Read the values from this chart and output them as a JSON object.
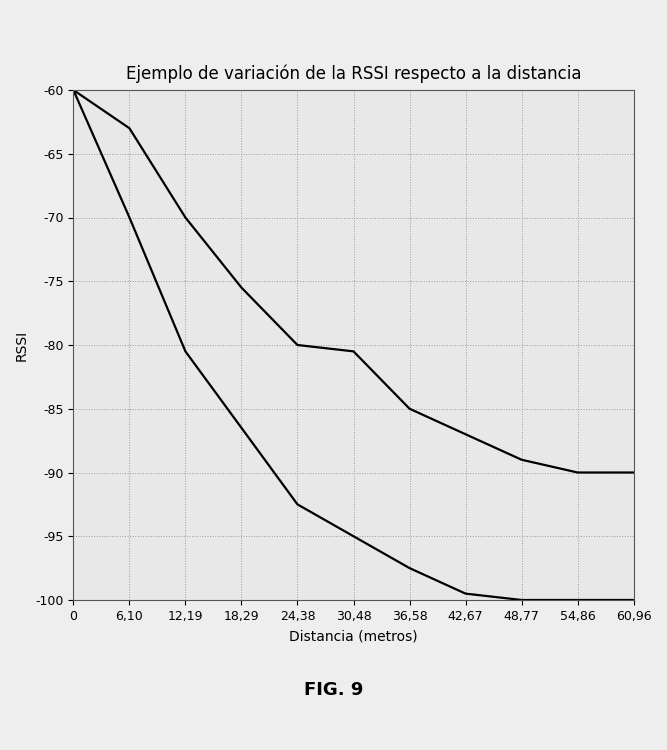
{
  "title": "Ejemplo de variación de la RSSI respecto a la distancia",
  "xlabel": "Distancia (metros)",
  "ylabel": "RSSI",
  "caption": "FIG. 9",
  "x_ticks": [
    0,
    6.1,
    12.19,
    18.29,
    24.38,
    30.48,
    36.58,
    42.67,
    48.77,
    54.86,
    60.96
  ],
  "x_tick_labels": [
    "0",
    "6,10",
    "12,19",
    "18,29",
    "24,38",
    "30,48",
    "36,58",
    "42,67",
    "48,77",
    "54,86",
    "60,96"
  ],
  "ylim": [
    -100,
    -60
  ],
  "xlim": [
    0,
    60.96
  ],
  "y_ticks": [
    -100,
    -95,
    -90,
    -85,
    -80,
    -75,
    -70,
    -65,
    -60
  ],
  "upper_line_x": [
    0,
    6.1,
    12.19,
    18.29,
    24.38,
    30.48,
    36.58,
    42.67,
    48.77,
    54.86,
    60.96
  ],
  "upper_line_y": [
    -60,
    -63.0,
    -70.0,
    -75.5,
    -80.0,
    -80.5,
    -85.0,
    -87.0,
    -89.0,
    -90.0,
    -90.0
  ],
  "lower_line_x": [
    0,
    6.1,
    12.19,
    18.29,
    24.38,
    30.48,
    36.58,
    42.67,
    48.77,
    54.86,
    60.96
  ],
  "lower_line_y": [
    -60,
    -70.0,
    -80.5,
    -86.5,
    -92.5,
    -95.0,
    -97.5,
    -99.5,
    -100.0,
    -100.0,
    -100.0
  ],
  "line_color": "#000000",
  "line_width": 1.6,
  "grid_color": "#999999",
  "background_color": "#eeeeee",
  "plot_bg_color": "#e8e8e8",
  "title_fontsize": 12,
  "axis_label_fontsize": 10,
  "tick_fontsize": 9,
  "caption_fontsize": 13
}
